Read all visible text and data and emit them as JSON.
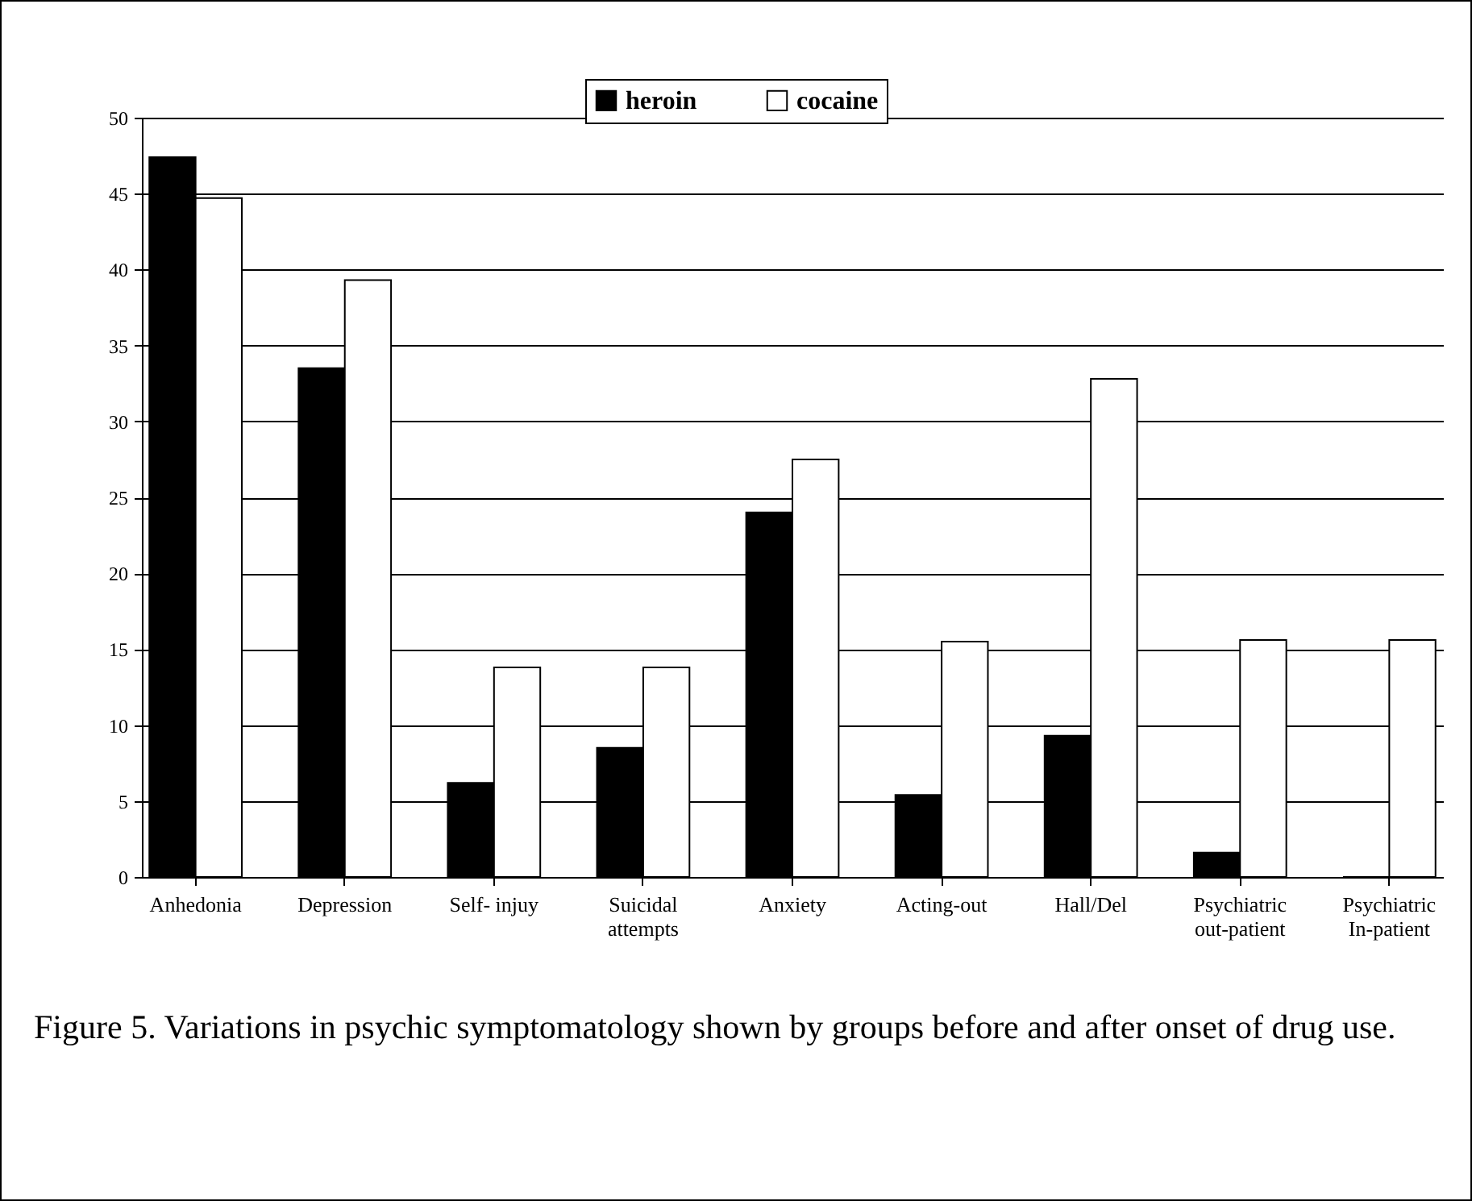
{
  "chart_data": {
    "type": "bar",
    "categories": [
      "Anhedonia",
      "Depression",
      "Self- injuy",
      "Suicidal attempts",
      "Anxiety",
      "Acting-out",
      "Hall/Del",
      "Psychiatric out-patient",
      "Psychiatric In-patient"
    ],
    "series": [
      {
        "name": "heroin",
        "color": "#000000",
        "values": [
          47.4,
          33.5,
          6.2,
          8.5,
          24,
          5.4,
          9.3,
          1.6,
          0
        ]
      },
      {
        "name": "cocaine",
        "color": "#ffffff",
        "values": [
          44.7,
          39.3,
          13.8,
          13.8,
          27.5,
          15.5,
          32.8,
          15.6,
          15.6
        ]
      }
    ],
    "ylim": [
      0,
      50
    ],
    "yticks": [
      0,
      5,
      10,
      15,
      20,
      25,
      30,
      35,
      40,
      45,
      50
    ],
    "grid": "y",
    "legend": "top",
    "annotations": [
      "Figure 5. Variations in psychic symptomatology shown by groups before and after onset of drug use."
    ]
  }
}
